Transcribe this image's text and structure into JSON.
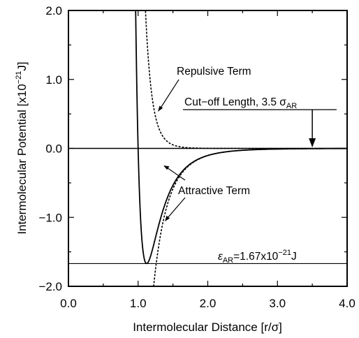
{
  "chart_data": {
    "type": "line",
    "xlabel": "Intermolecular Distance [r/σ]",
    "ylabel": "Intermolecular Potential [x10",
    "ylabel_exp": "−21",
    "ylabel_unit": "J]",
    "xlim": [
      0.0,
      4.0
    ],
    "ylim": [
      -2.0,
      2.0
    ],
    "x_ticks": [
      "0.0",
      "1.0",
      "2.0",
      "3.0",
      "4.0"
    ],
    "y_ticks": [
      "−2.0",
      "−1.0",
      "0.0",
      "1.0",
      "2.0"
    ],
    "x_tick_values": [
      0,
      1,
      2,
      3,
      4
    ],
    "y_tick_values": [
      -2,
      -1,
      0,
      1,
      2
    ],
    "epsilon": 1.67,
    "cutoff_x": 3.5,
    "series": [
      {
        "style": "solid",
        "formula": "4ε[(1/r)^12 − (1/r)^6]",
        "x_range": [
          0.95,
          4.0
        ]
      },
      {
        "style": "dashed",
        "formula": "4ε(1/r)^12",
        "x_range": [
          1.03,
          4.0
        ]
      },
      {
        "style": "dashed",
        "formula": "−4ε(1/r)^6",
        "x_range": [
          1.16,
          4.0
        ]
      }
    ],
    "annotations": {
      "repulsive": "Repulsive Term",
      "attractive": "Attractive Term",
      "cutoff_prefix": "Cut−off Length, 3.5 σ",
      "cutoff_sub": "AR",
      "epsilon_sym": "ε",
      "epsilon_sub": "AR",
      "epsilon_value": "=1.67x10",
      "epsilon_exp": "−21",
      "epsilon_unit": "J"
    }
  }
}
